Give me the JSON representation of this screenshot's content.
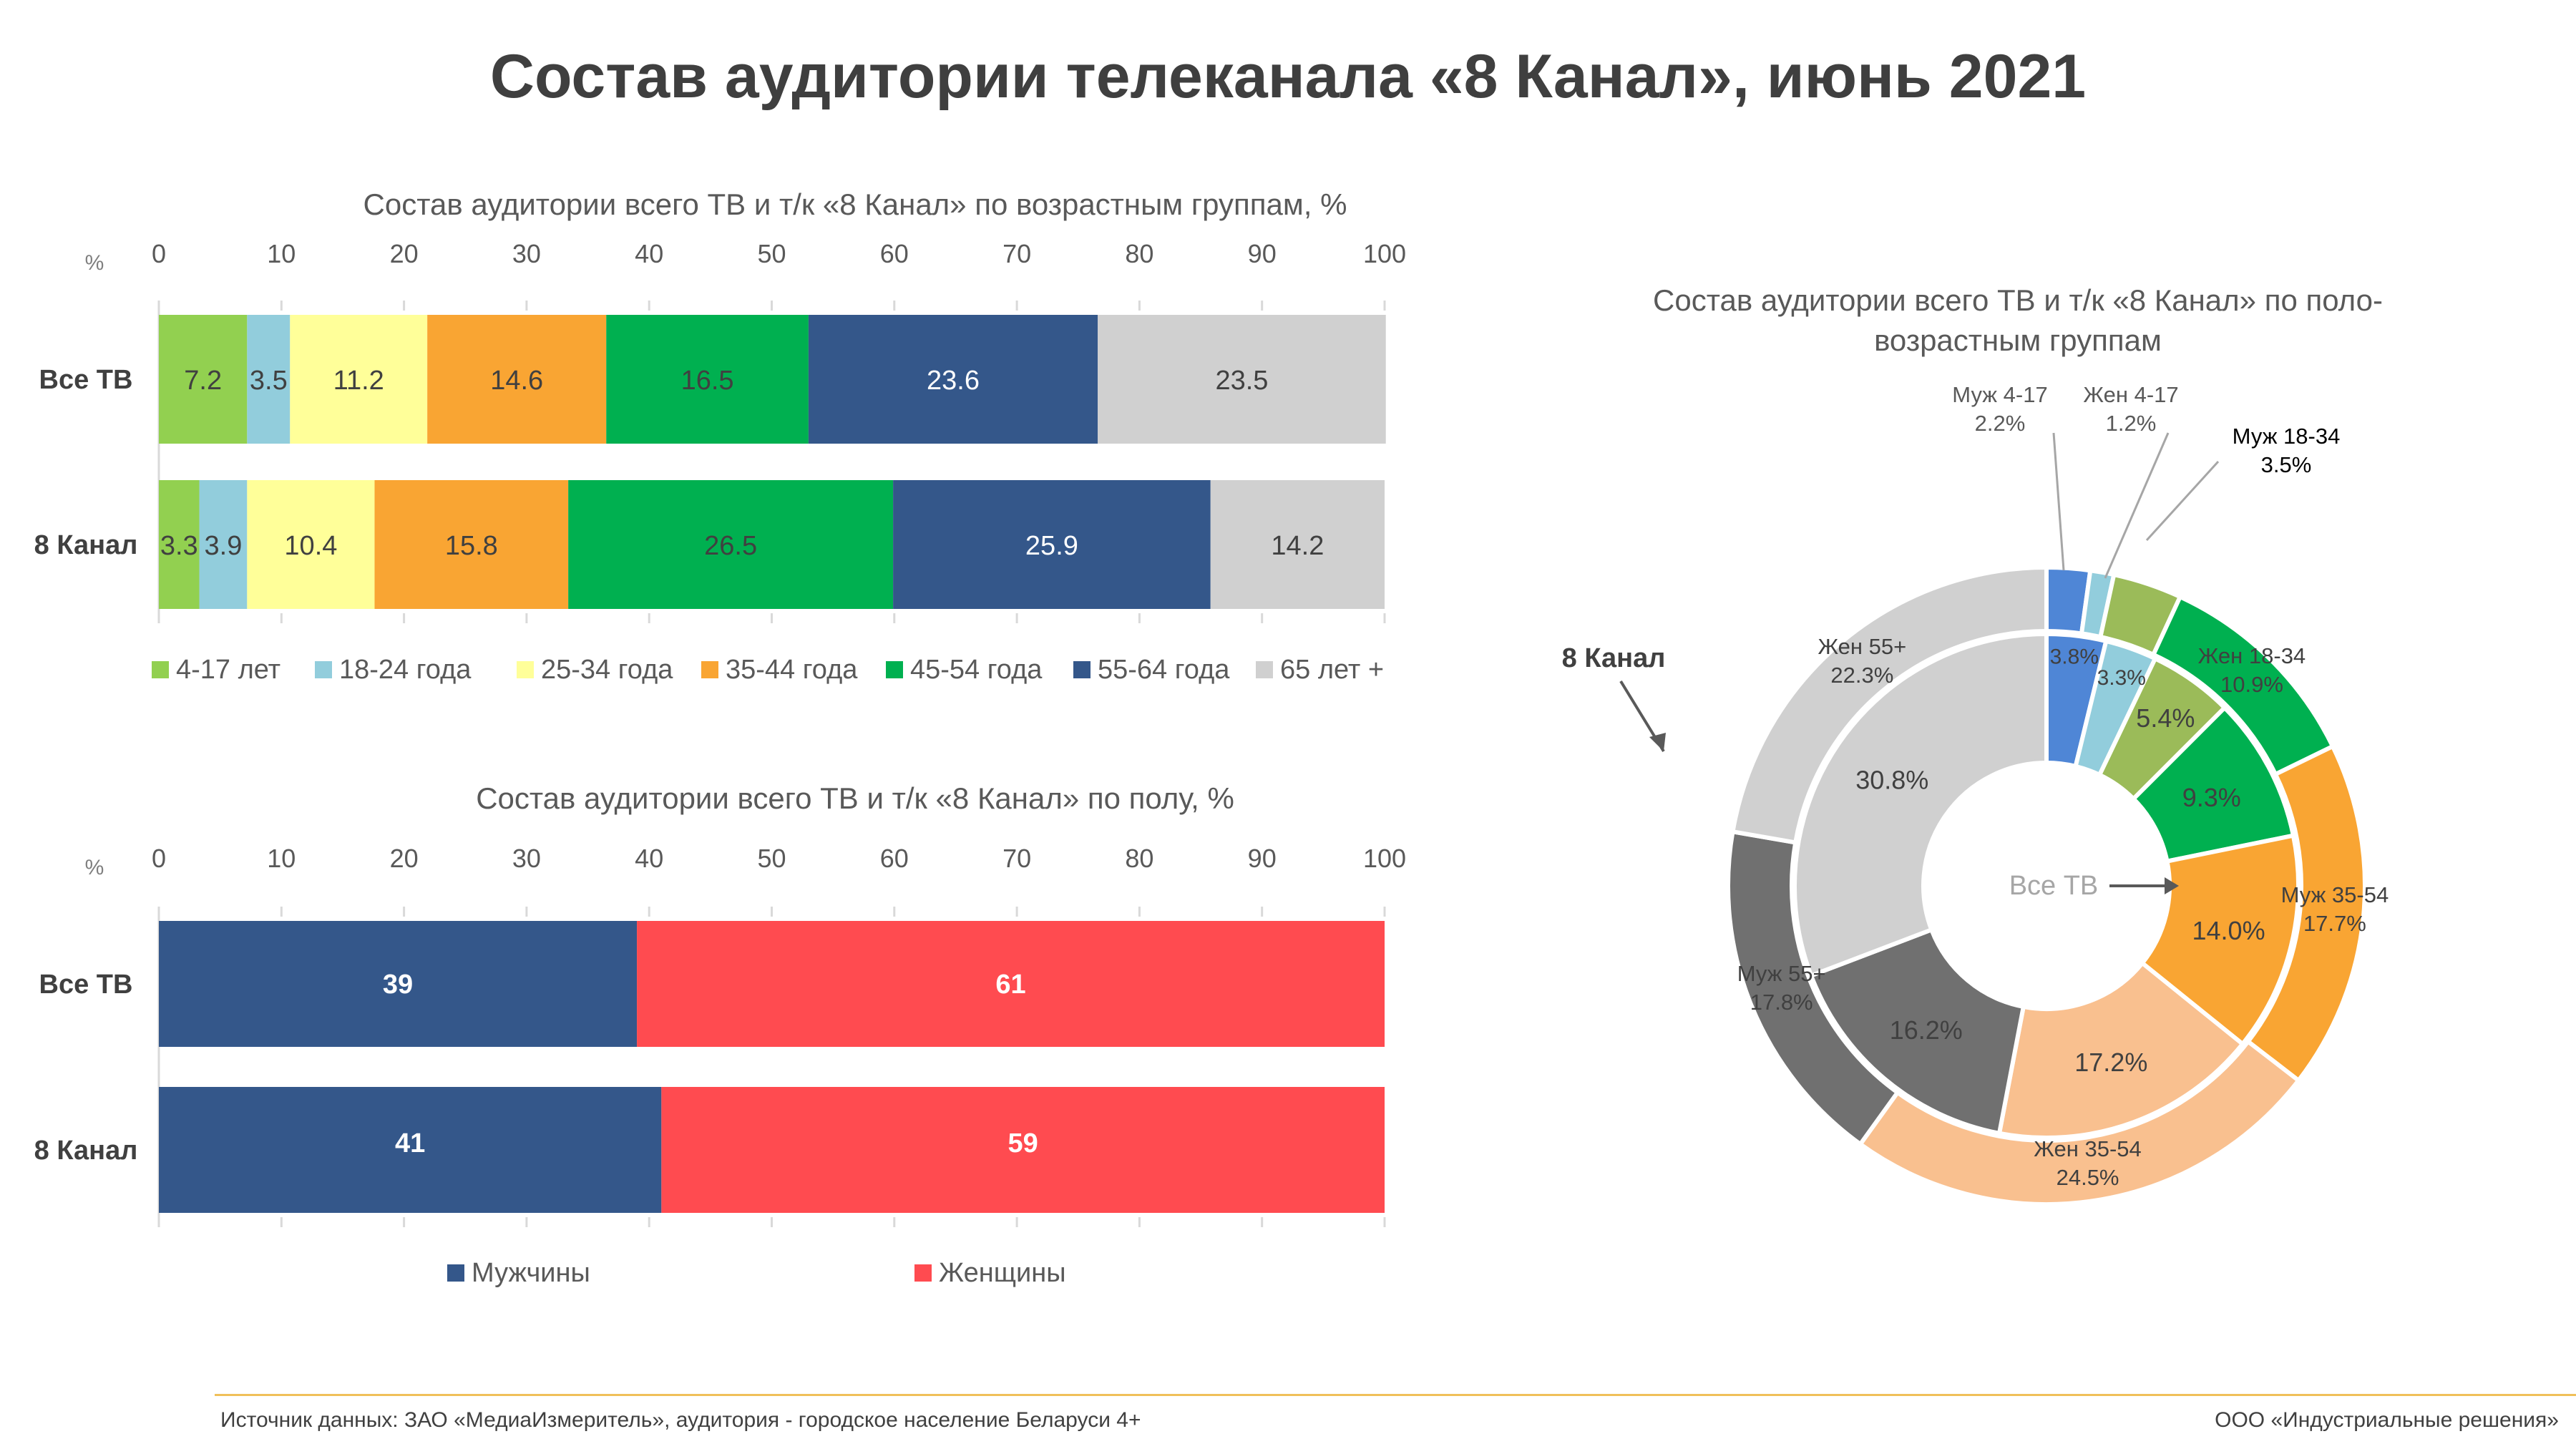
{
  "title": "Состав аудитории телеканала «8 Канал», июнь 2021",
  "footer": {
    "source": "Источник данных: ЗАО «МедиаИзмеритель», аудитория - городское население Беларуси 4+",
    "company": "ООО «Индустриальные решения»"
  },
  "colors": {
    "light_green": "#92d050",
    "light_blue": "#92cddc",
    "light_yellow": "#ffff99",
    "orange": "#f9a533",
    "green": "#00b050",
    "dark_blue": "#34578a",
    "gray": "#d0d0d0",
    "red": "#ff4b50",
    "donut_blue": "#4f86d6",
    "donut_olive": "#9bbb59",
    "donut_peach": "#f9c08f",
    "donut_dark_gray": "#707070"
  },
  "chart_data": [
    {
      "type": "bar",
      "orientation": "horizontal-stacked",
      "title": "Состав аудитории всего ТВ и т/к «8 Канал» по возрастным группам, %",
      "axis_unit": "%",
      "xlim": [
        0,
        100
      ],
      "ticks": [
        0,
        10,
        20,
        30,
        40,
        50,
        60,
        70,
        80,
        90,
        100
      ],
      "categories": [
        "Все ТВ",
        "8 Канал"
      ],
      "series": [
        {
          "name": "4-17 лет",
          "values": [
            7.2,
            3.3
          ],
          "labels": [
            "7.2",
            "3.3"
          ],
          "color": "#92d050"
        },
        {
          "name": "18-24 года",
          "values": [
            3.5,
            3.9
          ],
          "labels": [
            "3.5",
            "3.9"
          ],
          "color": "#92cddc"
        },
        {
          "name": "25-34 года",
          "values": [
            11.2,
            10.4
          ],
          "labels": [
            "11.2",
            "10.4"
          ],
          "color": "#ffff99"
        },
        {
          "name": "35-44 года",
          "values": [
            14.6,
            15.8
          ],
          "labels": [
            "14.6",
            "15.8"
          ],
          "color": "#f9a533"
        },
        {
          "name": "45-54 года",
          "values": [
            16.5,
            26.5
          ],
          "labels": [
            "16.5",
            "26.5"
          ],
          "color": "#00b050"
        },
        {
          "name": "55-64 года",
          "values": [
            23.6,
            25.9
          ],
          "labels": [
            "23.6",
            "25.9"
          ],
          "color": "#34578a"
        },
        {
          "name": "65 лет +",
          "values": [
            23.5,
            14.2
          ],
          "labels": [
            "23.5",
            "14.2"
          ],
          "color": "#d0d0d0"
        }
      ],
      "legend": "bottom"
    },
    {
      "type": "bar",
      "orientation": "horizontal-stacked",
      "title": "Состав аудитории всего ТВ и т/к «8 Канал» по полу, %",
      "axis_unit": "%",
      "xlim": [
        0,
        100
      ],
      "ticks": [
        0,
        10,
        20,
        30,
        40,
        50,
        60,
        70,
        80,
        90,
        100
      ],
      "categories": [
        "Все ТВ",
        "8 Канал"
      ],
      "series": [
        {
          "name": "Мужчины",
          "values": [
            39,
            41
          ],
          "labels": [
            "39",
            "41"
          ],
          "color": "#34578a"
        },
        {
          "name": "Женщины",
          "values": [
            61,
            59
          ],
          "labels": [
            "61",
            "59"
          ],
          "color": "#ff4b50"
        }
      ],
      "legend": "bottom"
    },
    {
      "type": "pie",
      "variant": "donut",
      "title": "Состав аудитории всего ТВ и т/к «8 Канал» по поло-возрастным группам",
      "inner_ring_label": "Все ТВ",
      "outer_ring_label": "8 Канал",
      "categories": [
        "Муж 4-17",
        "Жен 4-17",
        "Муж 18-34",
        "Жен 18-34",
        "Муж 35-54",
        "Жен 35-54",
        "Муж 55+",
        "Жен 55+"
      ],
      "colors": [
        "#4f86d6",
        "#92cddc",
        "#9bbb59",
        "#00b050",
        "#f9a533",
        "#f9c08f",
        "#707070",
        "#d0d0d0"
      ],
      "series": [
        {
          "name": "Все ТВ",
          "values": [
            3.8,
            3.3,
            5.4,
            9.3,
            14.0,
            17.2,
            16.2,
            30.8
          ],
          "labels": [
            "3.8%",
            "3.3%",
            "5.4%",
            "9.3%",
            "14.0%",
            "17.2%",
            "16.2%",
            "30.8%"
          ]
        },
        {
          "name": "8 Канал",
          "values": [
            2.2,
            1.2,
            3.5,
            10.9,
            17.7,
            24.5,
            17.8,
            22.3
          ],
          "labels": [
            "2.2%",
            "1.2%",
            "3.5%",
            "10.9%",
            "17.7%",
            "24.5%",
            "17.8%",
            "22.3%"
          ]
        }
      ]
    }
  ]
}
